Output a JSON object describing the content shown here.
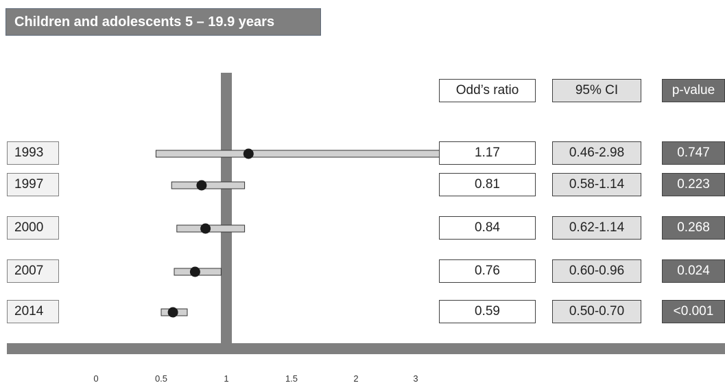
{
  "title": "Children and adolescents 5 – 19.9 years",
  "headers": {
    "odds_ratio": "Odd’s ratio",
    "ci": "95% CI",
    "p_value": "p-value"
  },
  "chart_data": {
    "type": "forest",
    "reference_line": 1,
    "xlim": [
      0,
      3
    ],
    "x_ticks": [
      "0",
      "0.5",
      "1",
      "1.5",
      "2",
      "3"
    ],
    "rows": [
      {
        "year": "1993",
        "or": 1.17,
        "ci_low": 0.46,
        "ci_high": 2.98,
        "or_label": "1.17",
        "ci_label": "0.46-2.98",
        "p_label": "0.747"
      },
      {
        "year": "1997",
        "or": 0.81,
        "ci_low": 0.58,
        "ci_high": 1.14,
        "or_label": "0.81",
        "ci_label": "0.58-1.14",
        "p_label": "0.223"
      },
      {
        "year": "2000",
        "or": 0.84,
        "ci_low": 0.62,
        "ci_high": 1.14,
        "or_label": "0.84",
        "ci_label": "0.62-1.14",
        "p_label": "0.268"
      },
      {
        "year": "2007",
        "or": 0.76,
        "ci_low": 0.6,
        "ci_high": 0.96,
        "or_label": "0.76",
        "ci_label": "0.60-0.96",
        "p_label": "0.024"
      },
      {
        "year": "2014",
        "or": 0.59,
        "ci_low": 0.5,
        "ci_high": 0.7,
        "or_label": "0.59",
        "ci_label": "0.50-0.70",
        "p_label": "<0.001"
      }
    ],
    "colors": {
      "axis": "#7f7f7f",
      "bar_fill": "#d0d0d0",
      "bar_stroke": "#333333",
      "point": "#1a1a1a",
      "p_cell": "#6e6e6e"
    }
  }
}
